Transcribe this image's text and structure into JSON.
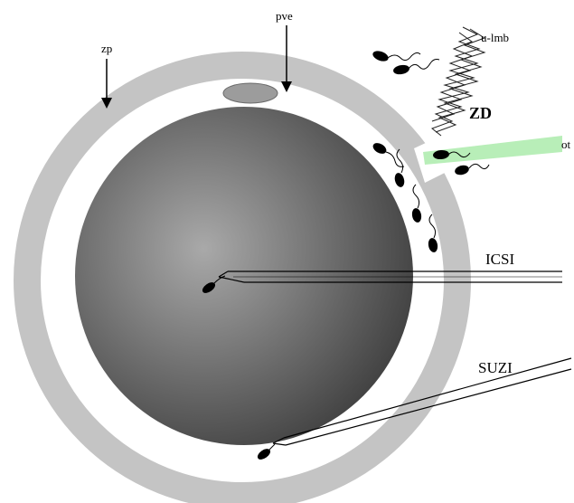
{
  "labels": {
    "zp": "zp",
    "pve": "pve",
    "u_lmb": "u-lmb",
    "zd": "ZD",
    "ot": "ot",
    "icsi": "ICSI",
    "suzi": "SUZI"
  },
  "colors": {
    "zona": "#c4c4c4",
    "egg_light": "#a9a9a9",
    "egg_dark": "#3a3a3a",
    "polar_body": "#9c9c9c",
    "laser_beam": "#b8eeb8",
    "sperm_head": "#000000",
    "outline": "#000000"
  },
  "icons": {
    "arrow": "arrow-down-icon",
    "sperm": "sperm-icon",
    "laser": "zigzag-laser-icon",
    "pipette": "micropipette-icon"
  }
}
